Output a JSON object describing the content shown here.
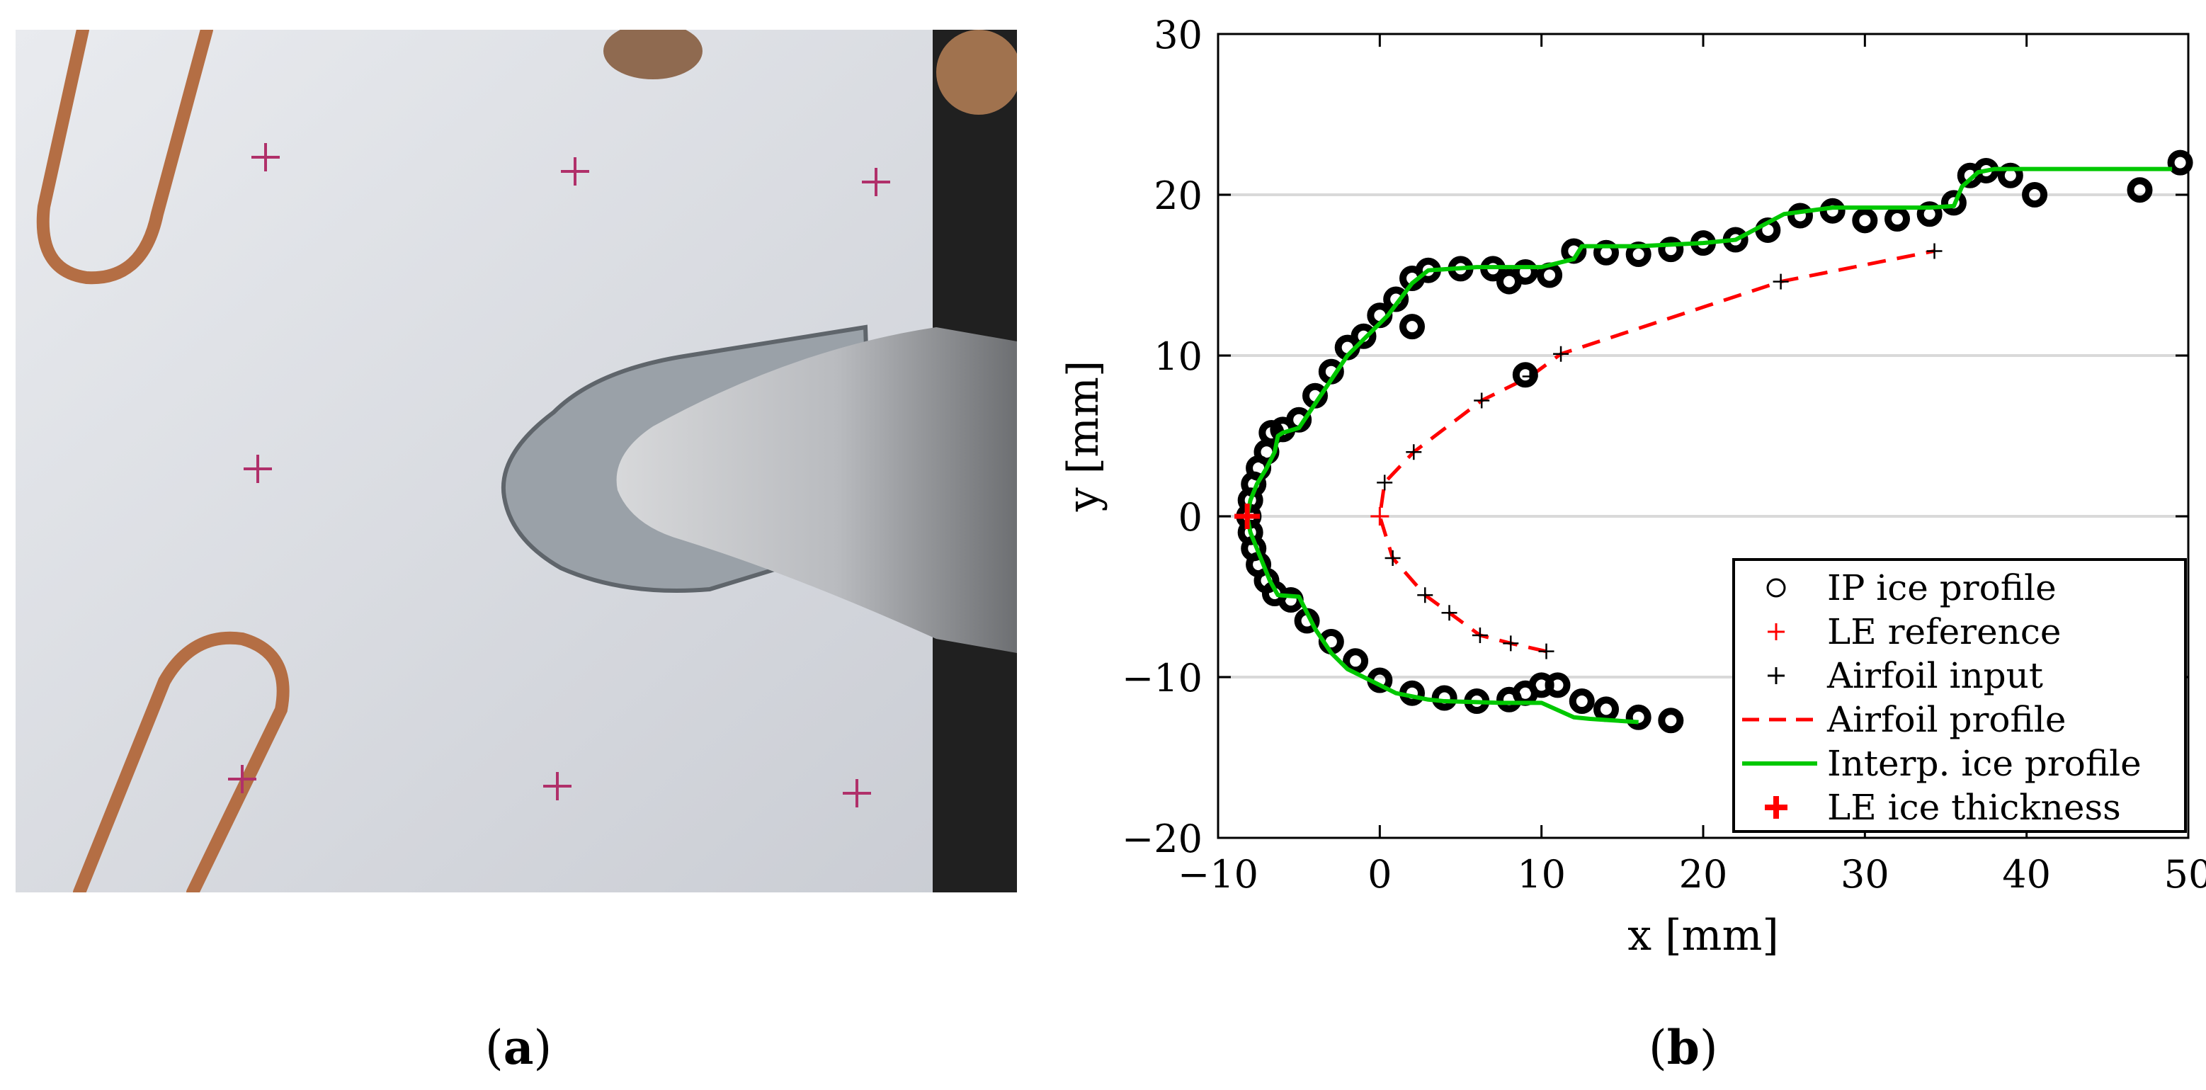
{
  "figure": {
    "panel_a_label": "a",
    "panel_b_label": "b"
  },
  "photo": {
    "background_color": "#dfe1e6",
    "cross_color": "#b0306a",
    "wire_color": "#b46e44",
    "ice_color": "#9aa1a8",
    "right_edge_color": "#202020"
  },
  "chart_data": {
    "type": "scatter",
    "xlabel": "x [mm]",
    "ylabel": "y [mm]",
    "xlim": [
      -10,
      50
    ],
    "ylim": [
      -20,
      30
    ],
    "xticks": [
      -10,
      0,
      10,
      20,
      30,
      40,
      50
    ],
    "yticks": [
      -20,
      -10,
      0,
      10,
      20,
      30
    ],
    "grid": "horizontal",
    "legend_position": "bottom-right",
    "legend": [
      {
        "key": "ip",
        "label": "IP ice profile",
        "marker": "circle",
        "color": "#000000"
      },
      {
        "key": "le_ref",
        "label": "LE reference",
        "marker": "plus",
        "color": "#ff0000"
      },
      {
        "key": "airfoil_input",
        "label": "Airfoil input",
        "marker": "plus",
        "color": "#000000"
      },
      {
        "key": "airfoil_profile",
        "label": "Airfoil profile",
        "marker": "dashed-line",
        "color": "#ff0000"
      },
      {
        "key": "interp",
        "label": "Interp. ice profile",
        "marker": "line",
        "color": "#00c800"
      },
      {
        "key": "le_thick",
        "label": "LE ice thickness",
        "marker": "bold-plus",
        "color": "#ff0000"
      }
    ],
    "series": {
      "airfoil_input": {
        "x": [
          0,
          0.3,
          2.1,
          6.3,
          9.3,
          11.2,
          24.8,
          34.3,
          0.8,
          2.8,
          4.3,
          6.2,
          8.1,
          10.3
        ],
        "y": [
          0,
          2.1,
          4.0,
          7.2,
          8.7,
          10.1,
          14.6,
          16.5,
          -2.6,
          -4.9,
          -6.0,
          -7.4,
          -7.9,
          -8.4
        ]
      },
      "airfoil_profile": {
        "x": [
          10.3,
          8.1,
          6.2,
          4.3,
          2.8,
          0.8,
          0,
          0.3,
          2.1,
          6.3,
          9.3,
          11.2,
          24.8,
          34.3
        ],
        "y": [
          -8.4,
          -7.9,
          -7.4,
          -6.0,
          -4.9,
          -2.6,
          0,
          2.1,
          4.0,
          7.2,
          8.7,
          10.1,
          14.6,
          16.5
        ]
      },
      "le_reference": {
        "x": [
          0
        ],
        "y": [
          0
        ]
      },
      "le_ice_thickness": {
        "x": [
          -8.2
        ],
        "y": [
          0
        ]
      },
      "interp_ice_profile": {
        "x": [
          16.0,
          13.0,
          12.0,
          10.0,
          8.0,
          7.5,
          4.0,
          3.0,
          1.0,
          0.0,
          -2.0,
          -3.0,
          -4.0,
          -5.0,
          -6.3,
          -6.8,
          -7.2,
          -7.6,
          -8.0,
          -8.2,
          -8.0,
          -7.6,
          -7.0,
          -6.5,
          -6.3,
          -6.0,
          -5.0,
          -4.0,
          -3.0,
          -2.0,
          -1.0,
          0.5,
          2.0,
          3.0,
          6.0,
          8.0,
          10.0,
          12.0,
          12.5,
          14.0,
          16.0,
          18.0,
          20.0,
          22.0,
          23.5,
          25.0,
          28.0,
          30.0,
          34.0,
          35.5,
          36.0,
          37.0,
          38.0,
          40.0,
          45.0,
          49.0
        ],
        "y": [
          -12.8,
          -12.6,
          -12.5,
          -11.6,
          -11.6,
          -11.6,
          -11.5,
          -11.4,
          -11.0,
          -10.5,
          -9.5,
          -8.5,
          -7.0,
          -5.0,
          -4.9,
          -4.0,
          -3.0,
          -2.0,
          -1.0,
          0.0,
          1.0,
          2.0,
          3.0,
          4.0,
          5.0,
          5.2,
          5.5,
          7.0,
          8.5,
          10.0,
          11.0,
          12.5,
          14.5,
          15.3,
          15.5,
          15.5,
          15.5,
          16.0,
          16.8,
          16.8,
          16.8,
          16.9,
          17.0,
          17.2,
          18.0,
          18.8,
          19.2,
          19.2,
          19.2,
          19.3,
          20.5,
          21.4,
          21.6,
          21.6,
          21.6,
          21.6
        ]
      },
      "ip_ice_profile": {
        "x": [
          18.0,
          16.0,
          14.0,
          12.5,
          11.0,
          10.0,
          9.0,
          8.0,
          6.0,
          4.0,
          2.0,
          0.0,
          -1.5,
          -3.0,
          -4.5,
          -5.5,
          -6.5,
          -7.0,
          -7.5,
          -7.8,
          -8.0,
          -8.1,
          -8.0,
          -7.8,
          -7.5,
          -7.0,
          -6.7,
          -6.0,
          -5.0,
          -4.0,
          -3.0,
          -2.0,
          -1.0,
          0.0,
          1.0,
          2.0,
          3.0,
          5.0,
          7.0,
          9.0,
          10.5,
          12.0,
          14.0,
          16.0,
          18.0,
          20.0,
          22.0,
          24.0,
          26.0,
          28.0,
          30.0,
          32.0,
          34.0,
          35.5,
          36.5,
          37.5,
          39.0,
          40.5,
          47.0,
          49.5,
          9.0,
          2.0,
          8.0
        ],
        "y": [
          -12.7,
          -12.5,
          -12.0,
          -11.5,
          -10.5,
          -10.5,
          -11.0,
          -11.4,
          -11.5,
          -11.3,
          -11.0,
          -10.2,
          -9.0,
          -7.8,
          -6.5,
          -5.2,
          -4.8,
          -4.0,
          -3.0,
          -2.0,
          -1.0,
          0.0,
          1.0,
          2.0,
          3.0,
          4.0,
          5.2,
          5.4,
          6.0,
          7.5,
          9.0,
          10.5,
          11.2,
          12.5,
          13.5,
          14.8,
          15.3,
          15.4,
          15.4,
          15.2,
          15.0,
          16.5,
          16.4,
          16.3,
          16.6,
          17.0,
          17.2,
          17.8,
          18.7,
          19.0,
          18.4,
          18.5,
          18.8,
          19.5,
          21.2,
          21.5,
          21.2,
          20.0,
          20.3,
          22.0,
          8.8,
          11.8,
          14.6
        ]
      }
    }
  }
}
